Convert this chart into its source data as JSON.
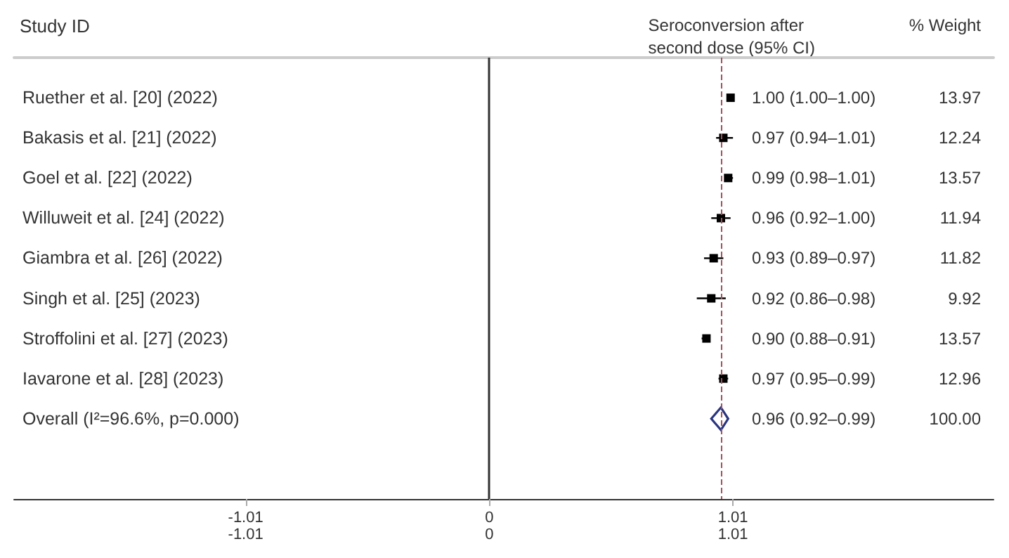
{
  "chart_data": {
    "type": "scatter",
    "orientation": "horizontal",
    "ylabel": "Study ID",
    "categories": [
      "Ruether et al. [20] (2022)",
      "Bakasis et al. [21] (2022)",
      "Goel et al. [22] (2022)",
      "Willuweit et al. [24] (2022)",
      "Giambra et al. [26] (2022)",
      "Singh et al. [25] (2023)",
      "Stroffolini et al. [27] (2023)",
      "Iavarone et al. [28] (2023)",
      "Overall (I²=96.6%, p=0.000)"
    ],
    "series": [
      {
        "color": "#000000",
        "marker": "square",
        "values": [
          1.0,
          0.97,
          0.99,
          0.96,
          0.93,
          0.92,
          0.9,
          0.97,
          null
        ],
        "errors": [
          [
            1.0,
            1.0
          ],
          [
            0.94,
            1.01
          ],
          [
            0.98,
            1.01
          ],
          [
            0.92,
            1.0
          ],
          [
            0.89,
            0.97
          ],
          [
            0.86,
            0.98
          ],
          [
            0.88,
            0.91
          ],
          [
            0.95,
            0.99
          ],
          null
        ],
        "value_labels": [
          "1.00 (1.00–1.00)",
          "0.97 (0.94–1.01)",
          "0.99 (0.98–1.01)",
          "0.96 (0.92–1.00)",
          "0.93 (0.89–0.97)",
          "0.92 (0.86–0.98)",
          "0.90 (0.88–0.91)",
          "0.97 (0.95–0.99)",
          null
        ]
      },
      {
        "color": "#2a3580",
        "marker": "diamond",
        "values": [
          null,
          null,
          null,
          null,
          null,
          null,
          null,
          null,
          0.96
        ],
        "errors": [
          null,
          null,
          null,
          null,
          null,
          null,
          null,
          null,
          [
            0.92,
            0.99
          ]
        ],
        "value_labels": [
          null,
          null,
          null,
          null,
          null,
          null,
          null,
          null,
          "0.96 (0.92–0.99)"
        ]
      }
    ],
    "xlim": [
      -1.97,
      2.09
    ],
    "xticks": [
      -1.01,
      0,
      1.01
    ],
    "x2lim": [
      -1.97,
      2.09
    ],
    "x2ticks": [
      -1.01,
      0,
      1.01
    ],
    "ref_lines": [
      {
        "axis": "x",
        "value": 0,
        "color": "#333333",
        "line_style": "solid"
      },
      {
        "axis": "x",
        "value": 0.96,
        "color": "#a0505a",
        "line_style": "dashed"
      }
    ],
    "grid": false,
    "annotations": [
      "Seroconversion after\nsecond dose (95% CI)",
      "% Weight",
      "13.97",
      "12.24",
      "13.57",
      "11.94",
      "11.82",
      "9.92",
      "13.57",
      "12.96",
      "100.00"
    ]
  }
}
